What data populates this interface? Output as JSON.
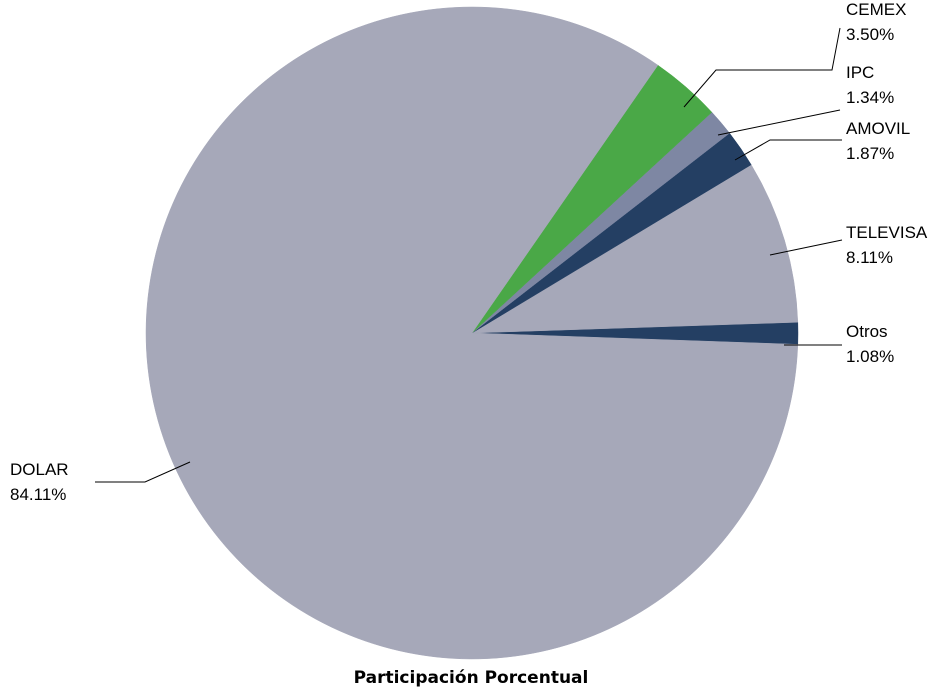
{
  "chart_data": {
    "type": "pie",
    "title": "Participación Porcentual",
    "slices": [
      {
        "label": "CEMEX",
        "value_label": "3.50%",
        "value": 3.5,
        "color": "#4aa847"
      },
      {
        "label": "IPC",
        "value_label": "1.34%",
        "value": 1.34,
        "color": "#7e87a3"
      },
      {
        "label": "AMOVIL",
        "value_label": "1.87%",
        "value": 1.87,
        "color": "#243f63"
      },
      {
        "label": "TELEVISA",
        "value_label": "8.11%",
        "value": 8.11,
        "color": "#a6a8b9"
      },
      {
        "label": "Otros",
        "value_label": "1.08%",
        "value": 1.08,
        "color": "#243f63"
      },
      {
        "label": "DOLAR",
        "value_label": "84.11%",
        "value": 84.11,
        "color": "#a6a8b9"
      }
    ]
  }
}
